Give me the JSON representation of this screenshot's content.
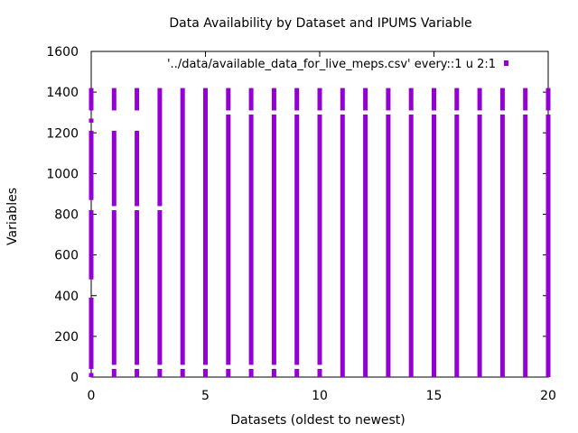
{
  "chart_data": {
    "type": "scatter",
    "title": "Data Availability by Dataset and IPUMS Variable",
    "xlabel": "Datasets (oldest to newest)",
    "ylabel": "Variables",
    "xlim": [
      0,
      20
    ],
    "ylim": [
      0,
      1600
    ],
    "xticks": [
      0,
      5,
      10,
      15,
      20
    ],
    "yticks": [
      0,
      200,
      400,
      600,
      800,
      1000,
      1200,
      1400,
      1600
    ],
    "legend_placement": "top-right",
    "grid": false,
    "series": [
      {
        "name": "'../data/available_data_for_live_meps.csv' every::1 u 2:1",
        "color": "#9400d3",
        "marker": "square",
        "columns": [
          {
            "x": 0,
            "ranges": [
              [
                0,
                20
              ],
              [
                40,
                390
              ],
              [
                480,
                820
              ],
              [
                870,
                1210
              ],
              [
                1250,
                1270
              ],
              [
                1310,
                1420
              ]
            ]
          },
          {
            "x": 1,
            "ranges": [
              [
                0,
                40
              ],
              [
                60,
                820
              ],
              [
                840,
                1210
              ],
              [
                1310,
                1420
              ]
            ]
          },
          {
            "x": 2,
            "ranges": [
              [
                0,
                40
              ],
              [
                60,
                820
              ],
              [
                840,
                1210
              ],
              [
                1310,
                1420
              ]
            ]
          },
          {
            "x": 3,
            "ranges": [
              [
                0,
                40
              ],
              [
                60,
                820
              ],
              [
                840,
                1420
              ]
            ]
          },
          {
            "x": 4,
            "ranges": [
              [
                0,
                40
              ],
              [
                60,
                1420
              ]
            ]
          },
          {
            "x": 5,
            "ranges": [
              [
                0,
                40
              ],
              [
                60,
                1420
              ]
            ]
          },
          {
            "x": 6,
            "ranges": [
              [
                0,
                40
              ],
              [
                60,
                1290
              ],
              [
                1310,
                1420
              ]
            ]
          },
          {
            "x": 7,
            "ranges": [
              [
                0,
                40
              ],
              [
                60,
                1290
              ],
              [
                1310,
                1420
              ]
            ]
          },
          {
            "x": 8,
            "ranges": [
              [
                0,
                40
              ],
              [
                60,
                1290
              ],
              [
                1310,
                1420
              ]
            ]
          },
          {
            "x": 9,
            "ranges": [
              [
                0,
                40
              ],
              [
                60,
                1290
              ],
              [
                1310,
                1420
              ]
            ]
          },
          {
            "x": 10,
            "ranges": [
              [
                0,
                40
              ],
              [
                60,
                1290
              ],
              [
                1310,
                1420
              ]
            ]
          },
          {
            "x": 11,
            "ranges": [
              [
                0,
                1290
              ],
              [
                1310,
                1420
              ]
            ]
          },
          {
            "x": 12,
            "ranges": [
              [
                0,
                1290
              ],
              [
                1310,
                1420
              ]
            ]
          },
          {
            "x": 13,
            "ranges": [
              [
                0,
                1290
              ],
              [
                1310,
                1420
              ]
            ]
          },
          {
            "x": 14,
            "ranges": [
              [
                0,
                1290
              ],
              [
                1310,
                1420
              ]
            ]
          },
          {
            "x": 15,
            "ranges": [
              [
                0,
                1290
              ],
              [
                1310,
                1420
              ]
            ]
          },
          {
            "x": 16,
            "ranges": [
              [
                0,
                1290
              ],
              [
                1310,
                1420
              ]
            ]
          },
          {
            "x": 17,
            "ranges": [
              [
                0,
                1290
              ],
              [
                1310,
                1420
              ]
            ]
          },
          {
            "x": 18,
            "ranges": [
              [
                0,
                1290
              ],
              [
                1310,
                1420
              ]
            ]
          },
          {
            "x": 19,
            "ranges": [
              [
                0,
                1290
              ],
              [
                1310,
                1420
              ]
            ]
          },
          {
            "x": 20,
            "ranges": [
              [
                0,
                1290
              ],
              [
                1310,
                1420
              ]
            ]
          }
        ]
      }
    ]
  }
}
